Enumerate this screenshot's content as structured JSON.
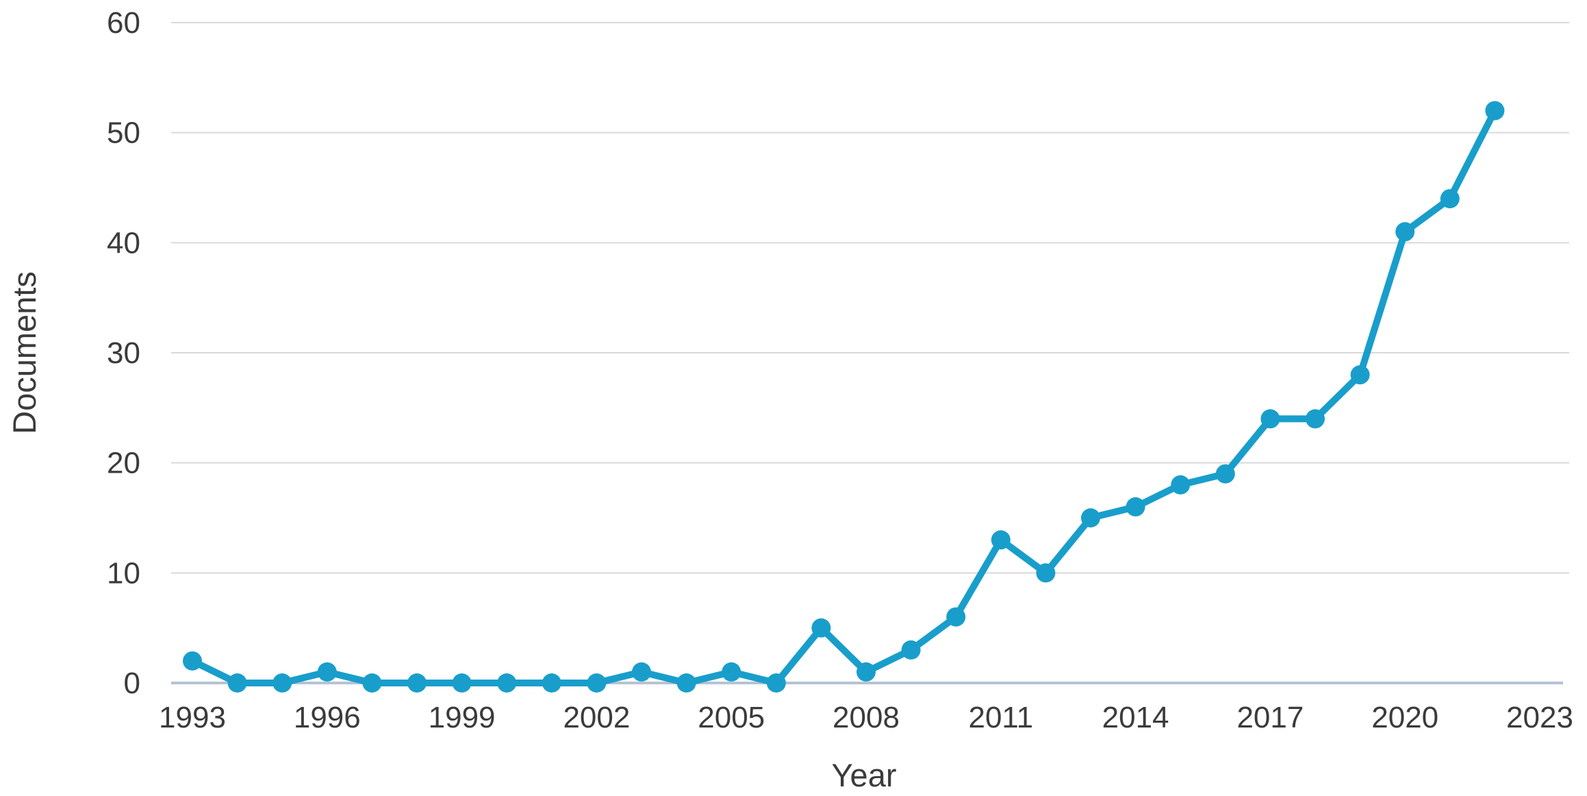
{
  "chart_data": {
    "type": "line",
    "title": "",
    "xlabel": "Year",
    "ylabel": "Documents",
    "series_name": "Documents",
    "x": [
      1993,
      1994,
      1995,
      1996,
      1997,
      1998,
      1999,
      2000,
      2001,
      2002,
      2003,
      2004,
      2005,
      2006,
      2007,
      2008,
      2009,
      2010,
      2011,
      2012,
      2013,
      2014,
      2015,
      2016,
      2017,
      2018,
      2019,
      2020,
      2021,
      2022
    ],
    "values": [
      2,
      0,
      0,
      1,
      0,
      0,
      0,
      0,
      0,
      0,
      1,
      0,
      1,
      0,
      5,
      1,
      3,
      6,
      13,
      10,
      15,
      16,
      18,
      19,
      24,
      24,
      28,
      41,
      44,
      52
    ],
    "xticks": [
      1993,
      1996,
      1999,
      2002,
      2005,
      2008,
      2011,
      2014,
      2017,
      2020,
      2023
    ],
    "yticks": [
      0,
      10,
      20,
      30,
      40,
      50,
      60
    ],
    "xlim": [
      1993,
      2023
    ],
    "ylim": [
      0,
      60
    ],
    "grid": "horizontal",
    "legend_position": "none",
    "marker": "circle",
    "colors": {
      "line": "#199ecb",
      "marker": "#199ecb",
      "gridline": "#d9d9d9",
      "zero_axis_line": "#b6c3d6",
      "text": "#3b3b3b",
      "background": "#ffffff"
    }
  }
}
